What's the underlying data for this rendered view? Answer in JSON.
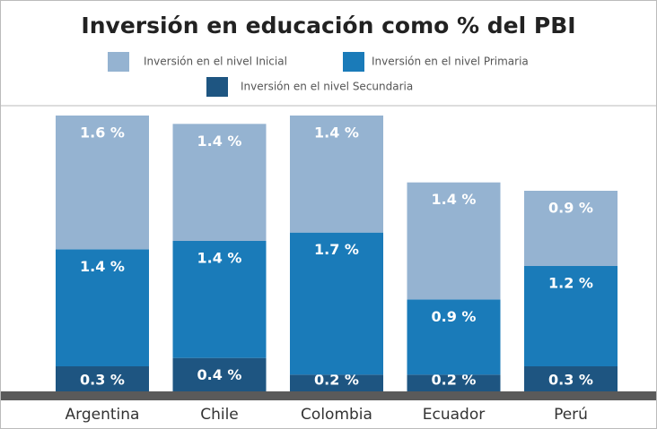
{
  "chart_data": {
    "type": "stacked-bar",
    "title": "Inversión en educación como % del PBI",
    "categories": [
      "Argentina",
      "Chile",
      "Colombia",
      "Ecuador",
      "Perú"
    ],
    "series": [
      {
        "name": "Inversión en el nivel Inicial",
        "color": "#95b3d1",
        "values": [
          1.6,
          1.4,
          1.4,
          1.4,
          0.9
        ],
        "value_labels": [
          "1.6 %",
          "1.4 %",
          "1.4 %",
          "1.4 %",
          "0.9 %"
        ]
      },
      {
        "name": "Inversión en el nivel Primaria",
        "color": "#1a7bb9",
        "values": [
          1.4,
          1.4,
          1.7,
          0.9,
          1.2
        ],
        "value_labels": [
          "1.4 %",
          "1.4 %",
          "1.7 %",
          "0.9 %",
          "1.2 %"
        ]
      },
      {
        "name": "Inversión en el nivel Secundaria",
        "color": "#1e5581",
        "values": [
          0.3,
          0.4,
          0.2,
          0.2,
          0.3
        ],
        "value_labels": [
          "0.3 %",
          "0.4 %",
          "0.2 %",
          "0.2 %",
          "0.3 %"
        ]
      }
    ]
  }
}
